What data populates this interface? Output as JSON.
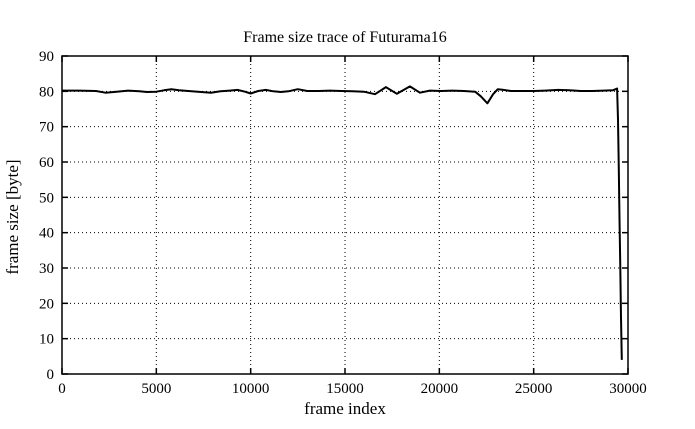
{
  "colors": {
    "background": "#ffffff",
    "foreground": "#000000",
    "grid": "#000000",
    "line": "#000000"
  },
  "chart_data": {
    "type": "line",
    "title": "Frame size trace of Futurama16",
    "xlabel": "frame index",
    "ylabel": "frame size [byte]",
    "xlim": [
      0,
      30000
    ],
    "ylim": [
      0,
      90
    ],
    "xticks": [
      0,
      5000,
      10000,
      15000,
      20000,
      25000,
      30000
    ],
    "yticks": [
      0,
      10,
      20,
      30,
      40,
      50,
      60,
      70,
      80,
      90
    ],
    "grid": "dotted",
    "legend": "none",
    "series": [
      {
        "name": "frame size",
        "color": "#000000",
        "points": [
          [
            0,
            80.2
          ],
          [
            900,
            80.2
          ],
          [
            1800,
            80.1
          ],
          [
            2300,
            79.6
          ],
          [
            2900,
            79.9
          ],
          [
            3500,
            80.2
          ],
          [
            4100,
            80.0
          ],
          [
            4500,
            79.8
          ],
          [
            5000,
            79.9
          ],
          [
            5400,
            80.3
          ],
          [
            5800,
            80.6
          ],
          [
            6200,
            80.3
          ],
          [
            6700,
            80.1
          ],
          [
            7200,
            79.9
          ],
          [
            7900,
            79.6
          ],
          [
            8400,
            80.0
          ],
          [
            8900,
            80.2
          ],
          [
            9300,
            80.4
          ],
          [
            9700,
            79.9
          ],
          [
            10000,
            79.4
          ],
          [
            10400,
            80.1
          ],
          [
            10800,
            80.4
          ],
          [
            11200,
            80.0
          ],
          [
            11600,
            79.8
          ],
          [
            12000,
            80.0
          ],
          [
            12500,
            80.6
          ],
          [
            13000,
            80.1
          ],
          [
            13600,
            80.1
          ],
          [
            14200,
            80.2
          ],
          [
            14800,
            80.1
          ],
          [
            15400,
            80.0
          ],
          [
            16000,
            79.9
          ],
          [
            16590,
            79.2
          ],
          [
            17170,
            81.2
          ],
          [
            17750,
            79.3
          ],
          [
            18440,
            81.4
          ],
          [
            18970,
            79.6
          ],
          [
            19500,
            80.2
          ],
          [
            20100,
            80.1
          ],
          [
            20700,
            80.2
          ],
          [
            21300,
            80.1
          ],
          [
            21900,
            79.9
          ],
          [
            22200,
            78.6
          ],
          [
            22550,
            76.6
          ],
          [
            22850,
            79.2
          ],
          [
            23100,
            80.6
          ],
          [
            23400,
            80.4
          ],
          [
            23800,
            80.1
          ],
          [
            24400,
            80.1
          ],
          [
            25000,
            80.1
          ],
          [
            25600,
            80.2
          ],
          [
            26300,
            80.4
          ],
          [
            26900,
            80.3
          ],
          [
            27500,
            80.1
          ],
          [
            28100,
            80.1
          ],
          [
            28700,
            80.2
          ],
          [
            29200,
            80.3
          ],
          [
            29420,
            80.8
          ],
          [
            29470,
            72
          ],
          [
            29510,
            58
          ],
          [
            29550,
            44
          ],
          [
            29590,
            30
          ],
          [
            29630,
            16
          ],
          [
            29670,
            4
          ]
        ]
      }
    ]
  }
}
